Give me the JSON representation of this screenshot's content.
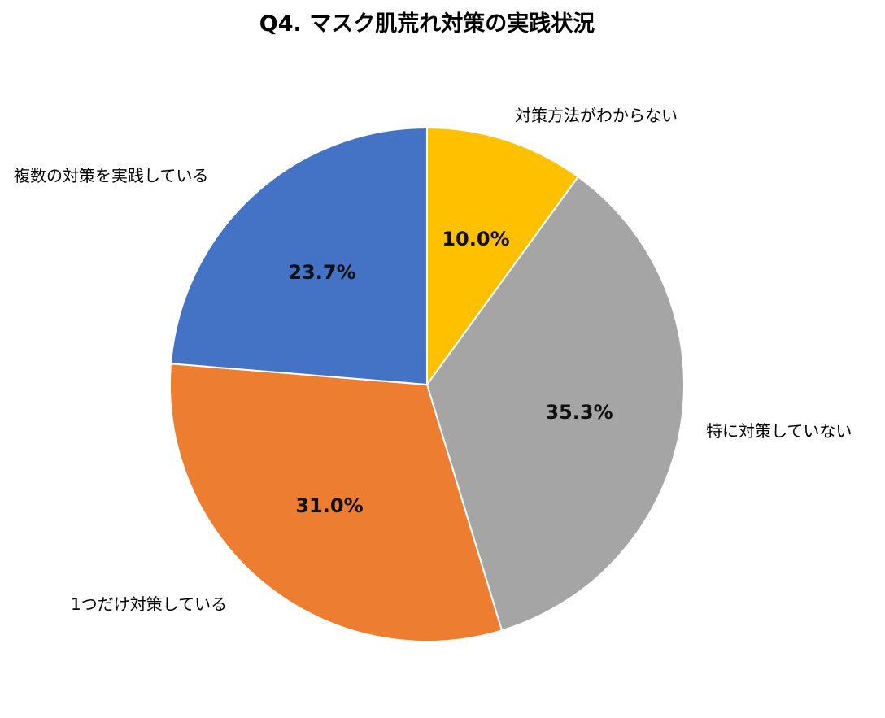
{
  "chart_data": {
    "type": "pie",
    "title": "Q4. マスク肌荒れ対策の実践状況",
    "categories": [
      "対策方法がわからない",
      "特に対策していない",
      "1つだけ対策している",
      "複数の対策を実践している"
    ],
    "values": [
      10.0,
      35.3,
      31.0,
      23.7
    ],
    "value_labels": [
      "10.0%",
      "35.3%",
      "31.0%",
      "23.7%"
    ],
    "colors": [
      "#FFC000",
      "#A5A5A5",
      "#ED7D31",
      "#4472C4"
    ],
    "start": "12 o'clock",
    "direction": "clockwise",
    "legend": "none"
  }
}
